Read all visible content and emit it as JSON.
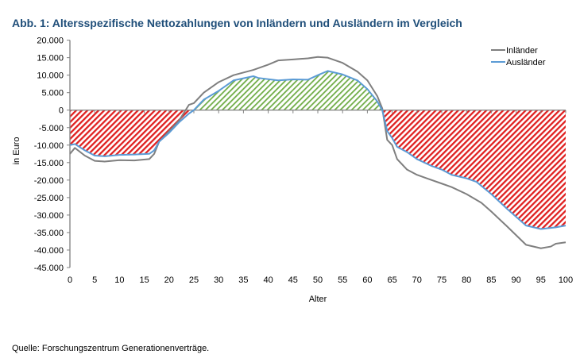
{
  "chart_data": {
    "type": "line",
    "title": "Abb. 1: Altersspezifische Nettozahlungen von Inländern und Ausländern im Vergleich",
    "xlabel": "Alter",
    "ylabel": "in Euro",
    "xlim": [
      0,
      100
    ],
    "ylim": [
      -45000,
      20000
    ],
    "x_ticks": [
      "0",
      "5",
      "10",
      "15",
      "20",
      "25",
      "30",
      "35",
      "40",
      "45",
      "50",
      "55",
      "60",
      "65",
      "70",
      "75",
      "80",
      "85",
      "90",
      "95",
      "100"
    ],
    "y_ticks": [
      "20.000",
      "15.000",
      "10.000",
      "5.000",
      "0",
      "-5.000",
      "-10.000",
      "-15.000",
      "-20.000",
      "-25.000",
      "-30.000",
      "-35.000",
      "-40.000",
      "-45.000"
    ],
    "y_tick_values": [
      20000,
      15000,
      10000,
      5000,
      0,
      -5000,
      -10000,
      -15000,
      -20000,
      -25000,
      -30000,
      -35000,
      -40000,
      -45000
    ],
    "legend_position": "top-right",
    "series": [
      {
        "name": "Inländer",
        "color": "#7f7f7f",
        "x": [
          0,
          1,
          3,
          5,
          7,
          10,
          13,
          16,
          17,
          18,
          20,
          22,
          24,
          25,
          27,
          30,
          33,
          37,
          40,
          42,
          45,
          48,
          50,
          52,
          55,
          58,
          60,
          62,
          63,
          64,
          65,
          66,
          68,
          70,
          72,
          75,
          77,
          80,
          83,
          85,
          88,
          92,
          95,
          97,
          98,
          100
        ],
        "y": [
          -12500,
          -10800,
          -13000,
          -14500,
          -14700,
          -14300,
          -14400,
          -14000,
          -12500,
          -9000,
          -6000,
          -3000,
          1500,
          2000,
          5000,
          8000,
          10000,
          11500,
          13000,
          14200,
          14500,
          14800,
          15200,
          15000,
          13500,
          11000,
          8500,
          4000,
          500,
          -8500,
          -10000,
          -14000,
          -17000,
          -18500,
          -19500,
          -21000,
          -22000,
          -24000,
          -26500,
          -29000,
          -33000,
          -38500,
          -39500,
          -39000,
          -38200,
          -37800
        ]
      },
      {
        "name": "Ausländer",
        "color": "#5b9bd5",
        "x": [
          0,
          1,
          3,
          5,
          7,
          10,
          13,
          16,
          17,
          18,
          20,
          22,
          24,
          25,
          27,
          30,
          33,
          37,
          38,
          42,
          45,
          48,
          50,
          52,
          55,
          58,
          60,
          62,
          63,
          64,
          65,
          66,
          68,
          70,
          73,
          75,
          77,
          80,
          82,
          85,
          88,
          90,
          92,
          95,
          98,
          100
        ],
        "y": [
          -10000,
          -9700,
          -11500,
          -13000,
          -13200,
          -12800,
          -12700,
          -12500,
          -11500,
          -9000,
          -6500,
          -3500,
          -1000,
          0,
          3000,
          5500,
          8500,
          9700,
          9200,
          8500,
          8800,
          8700,
          10000,
          11200,
          10200,
          8500,
          6000,
          2500,
          0,
          -6000,
          -8000,
          -10500,
          -12000,
          -14000,
          -16000,
          -17000,
          -18500,
          -19500,
          -20500,
          -24000,
          -28000,
          -30500,
          -33000,
          -34000,
          -33500,
          -33000
        ]
      }
    ],
    "area_fill": {
      "series": "Ausländer",
      "positive_color": "#70ad47",
      "negative_color": "#e02020"
    }
  },
  "source": "Quelle: Forschungszentrum Generationenverträge."
}
